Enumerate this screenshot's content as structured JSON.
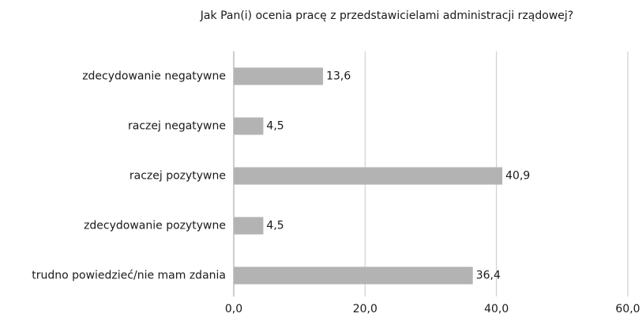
{
  "chart_data": {
    "type": "bar",
    "orientation": "horizontal",
    "title": "Jak Pan(i) ocenia pracę z przedstawicielami administracji rządowej?",
    "categories": [
      "zdecydowanie negatywne",
      "raczej negatywne",
      "raczej pozytywne",
      "zdecydowanie pozytywne",
      "trudno powiedzieć/nie mam zdania"
    ],
    "values": [
      13.6,
      4.5,
      40.9,
      4.5,
      36.4
    ],
    "value_labels": [
      "13,6",
      "4,5",
      "40,9",
      "4,5",
      "36,4"
    ],
    "color": "#b3b3b3",
    "xlim": [
      0,
      60
    ],
    "xticks": [
      {
        "value": 0,
        "label": "0,0"
      },
      {
        "value": 20,
        "label": "20,0"
      },
      {
        "value": 40,
        "label": "40,0"
      },
      {
        "value": 60,
        "label": "60,0"
      }
    ],
    "grid": true
  }
}
